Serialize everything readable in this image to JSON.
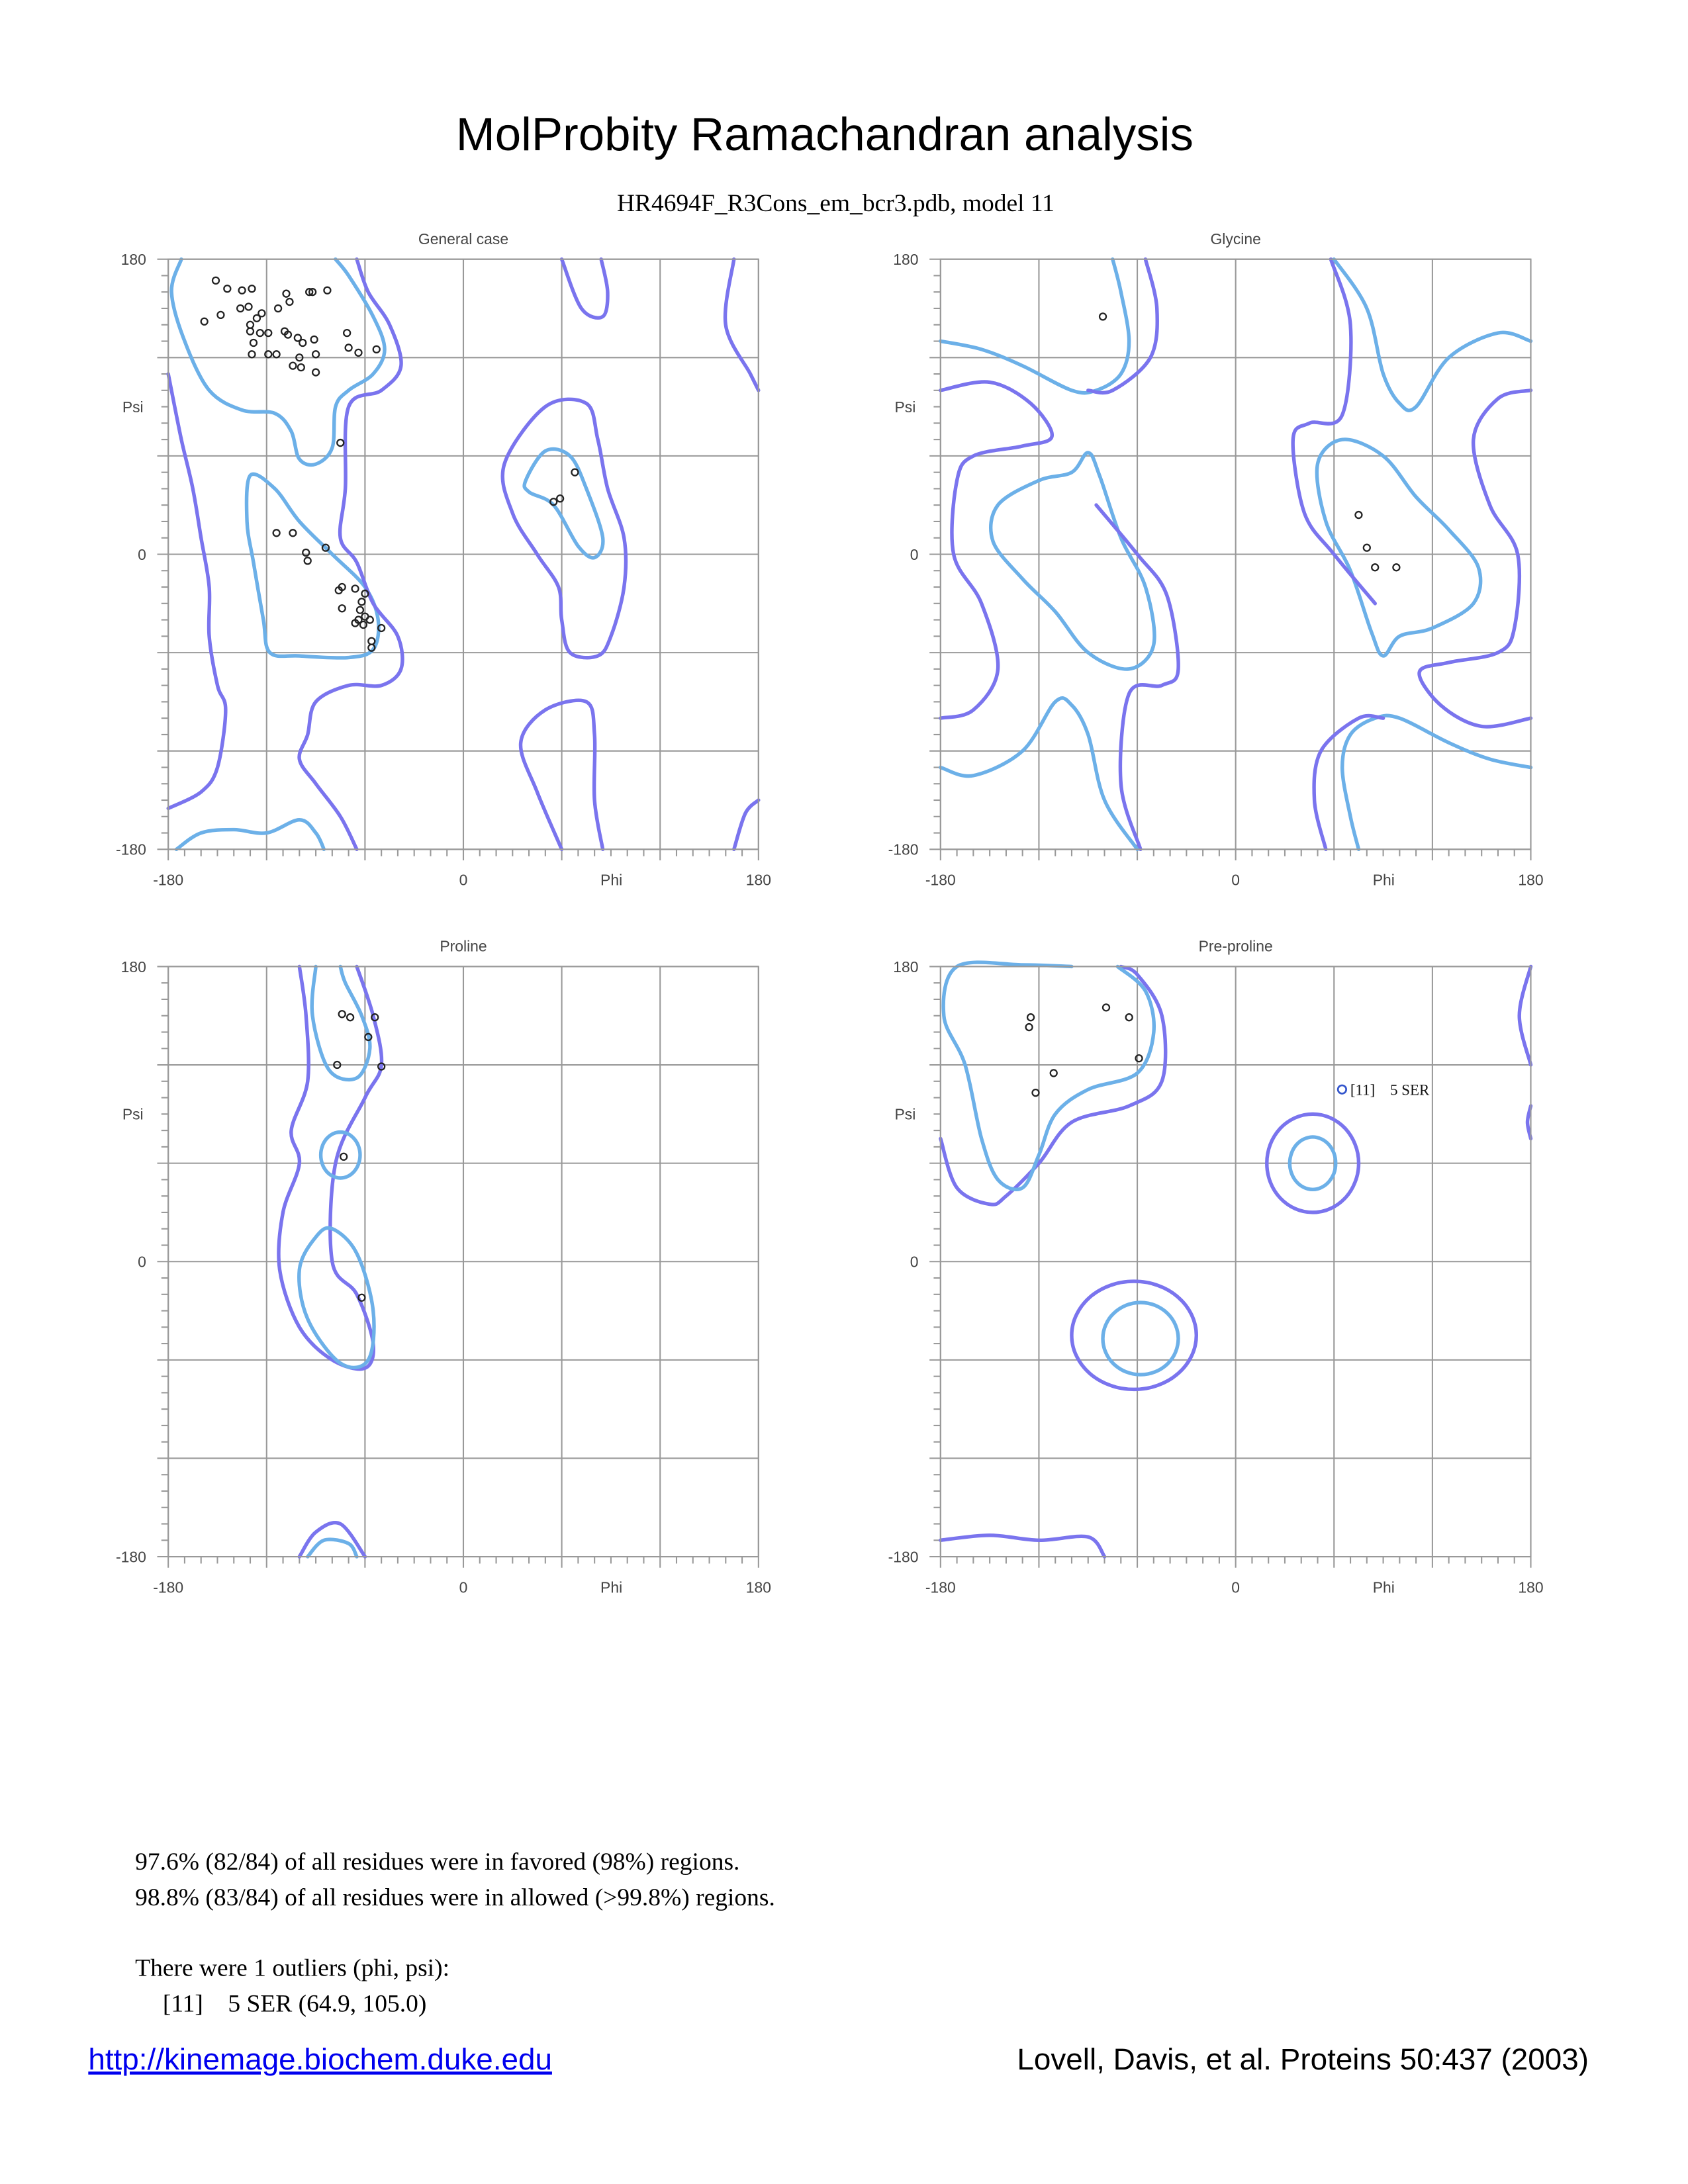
{
  "title": "MolProbity Ramachandran analysis",
  "subtitle": "HR4694F_R3Cons_em_bcr3.pdb, model 11",
  "colors": {
    "favored_contour": "#6cb0e8",
    "allowed_contour": "#7a74ee",
    "points": "#222222",
    "outlier": "#3355cc",
    "grid": "#999999"
  },
  "chart_data": [
    {
      "type": "scatter",
      "title": "General case",
      "xlabel": "Phi",
      "ylabel": "Psi",
      "xlim": [
        -180,
        180
      ],
      "ylim": [
        -180,
        180
      ],
      "grid": true,
      "grid_step": 60,
      "xticks": [
        "-180",
        "0",
        "180"
      ],
      "yticks": [
        "180",
        "0",
        "-180"
      ],
      "points": [
        [
          -151,
          167
        ],
        [
          -144,
          162
        ],
        [
          -135,
          161
        ],
        [
          -129,
          162
        ],
        [
          -158,
          142
        ],
        [
          -148,
          146
        ],
        [
          -136,
          150
        ],
        [
          -131,
          151
        ],
        [
          -126,
          144
        ],
        [
          -123,
          147
        ],
        [
          -130,
          140
        ],
        [
          -130,
          136
        ],
        [
          -124,
          135
        ],
        [
          -119,
          135
        ],
        [
          -128,
          129
        ],
        [
          -129,
          122
        ],
        [
          -119,
          122
        ],
        [
          -114,
          122
        ],
        [
          -113,
          150
        ],
        [
          -108,
          159
        ],
        [
          -106,
          154
        ],
        [
          -109,
          136
        ],
        [
          -107,
          134
        ],
        [
          -101,
          132
        ],
        [
          -98,
          129
        ],
        [
          -91,
          131
        ],
        [
          -94,
          160
        ],
        [
          -92,
          160
        ],
        [
          -83,
          161
        ],
        [
          -100,
          120
        ],
        [
          -90,
          122
        ],
        [
          -104,
          115
        ],
        [
          -99,
          114
        ],
        [
          -90,
          111
        ],
        [
          -71,
          135
        ],
        [
          -70,
          126
        ],
        [
          -64,
          123
        ],
        [
          -53,
          125
        ],
        [
          -75,
          68
        ],
        [
          -114,
          13
        ],
        [
          -104,
          13
        ],
        [
          -96,
          1
        ],
        [
          -84,
          4
        ],
        [
          -95,
          -4
        ],
        [
          -74,
          -20
        ],
        [
          -76,
          -22
        ],
        [
          -66,
          -21
        ],
        [
          -60,
          -24
        ],
        [
          -62,
          -29
        ],
        [
          -63,
          -34
        ],
        [
          -74,
          -33
        ],
        [
          -60,
          -38
        ],
        [
          -64,
          -40
        ],
        [
          -66,
          -42
        ],
        [
          -57,
          -40
        ],
        [
          -61,
          -43
        ],
        [
          -50,
          -45
        ],
        [
          -56,
          -53
        ],
        [
          -56,
          -57
        ],
        [
          59,
          34
        ],
        [
          55,
          32
        ],
        [
          68,
          50
        ]
      ]
    },
    {
      "type": "scatter",
      "title": "Glycine",
      "xlabel": "Phi",
      "ylabel": "Psi",
      "xlim": [
        -180,
        180
      ],
      "ylim": [
        -180,
        180
      ],
      "grid": true,
      "grid_step": 60,
      "xticks": [
        "-180",
        "0",
        "180"
      ],
      "yticks": [
        "180",
        "0",
        "-180"
      ],
      "points": [
        [
          -81,
          145
        ],
        [
          75,
          24
        ],
        [
          80,
          4
        ],
        [
          85,
          -8
        ],
        [
          98,
          -8
        ]
      ]
    },
    {
      "type": "scatter",
      "title": "Proline",
      "xlabel": "Phi",
      "ylabel": "Psi",
      "xlim": [
        -180,
        180
      ],
      "ylim": [
        -180,
        180
      ],
      "grid": true,
      "grid_step": 60,
      "xticks": [
        "-180",
        "0",
        "180"
      ],
      "yticks": [
        "180",
        "0",
        "-180"
      ],
      "points": [
        [
          -74,
          151
        ],
        [
          -69,
          149
        ],
        [
          -54,
          149
        ],
        [
          -58,
          137
        ],
        [
          -77,
          120
        ],
        [
          -50,
          119
        ],
        [
          -73,
          64
        ],
        [
          -62,
          -22
        ]
      ]
    },
    {
      "type": "scatter",
      "title": "Pre-proline",
      "xlabel": "Phi",
      "ylabel": "Psi",
      "xlim": [
        -180,
        180
      ],
      "ylim": [
        -180,
        180
      ],
      "grid": true,
      "grid_step": 60,
      "xticks": [
        "-180",
        "0",
        "180"
      ],
      "yticks": [
        "180",
        "0",
        "-180"
      ],
      "points": [
        [
          -125,
          149
        ],
        [
          -126,
          143
        ],
        [
          -111,
          115
        ],
        [
          -122,
          103
        ],
        [
          -79,
          155
        ],
        [
          -65,
          149
        ],
        [
          -59,
          124
        ]
      ],
      "outliers": [
        {
          "phi": 64.9,
          "psi": 105.0,
          "label": "[11]    5 SER"
        }
      ]
    }
  ],
  "summary": {
    "favored": "97.6% (82/84) of all residues were in favored (98%) regions.",
    "allowed": "98.8% (83/84) of all residues were in allowed (>99.8%) regions.",
    "outliers_header": "There were 1 outliers (phi, psi):",
    "outliers": [
      "[11]    5 SER (64.9, 105.0)"
    ]
  },
  "footer": {
    "link": "http://kinemage.biochem.duke.edu",
    "citation": "Lovell, Davis, et al. Proteins 50:437 (2003)"
  }
}
